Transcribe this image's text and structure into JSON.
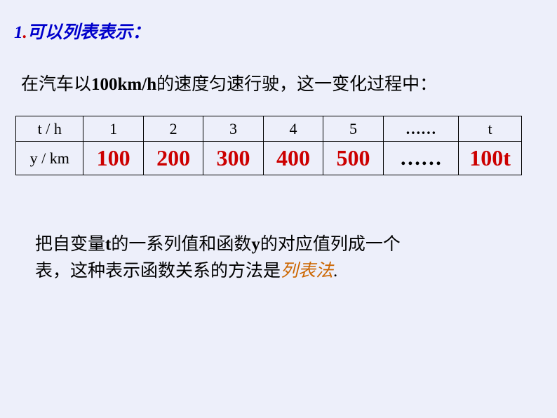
{
  "heading": {
    "num": "1",
    "dot": ".",
    "text": "可以列表表示：",
    "color": "#0000cc"
  },
  "subheading": {
    "prefix": "在汽车以",
    "bold": "100km/h",
    "suffix": "的速度匀速行驶，这一变化过程中："
  },
  "table": {
    "row1": {
      "label": "t / h",
      "c1": "1",
      "c2": "2",
      "c3": "3",
      "c4": "4",
      "c5": "5",
      "dots": "……",
      "last": "t"
    },
    "row2": {
      "label": "y / km",
      "c1": "100",
      "c2": "200",
      "c3": "300",
      "c4": "400",
      "c5": "500",
      "dots": "……",
      "last": "100t"
    },
    "value_color": "#cc0000",
    "border_color": "#000000"
  },
  "explain": {
    "p1a": "把自变量",
    "p1b": "t",
    "p1c": "的一系列值和函数",
    "p1d": "y",
    "p1e": "的对应值列成一个",
    "p2a": "表，这种表示函数关系的方法是",
    "highlight": "列表法",
    "period": "."
  },
  "background_color": "#edeffa"
}
